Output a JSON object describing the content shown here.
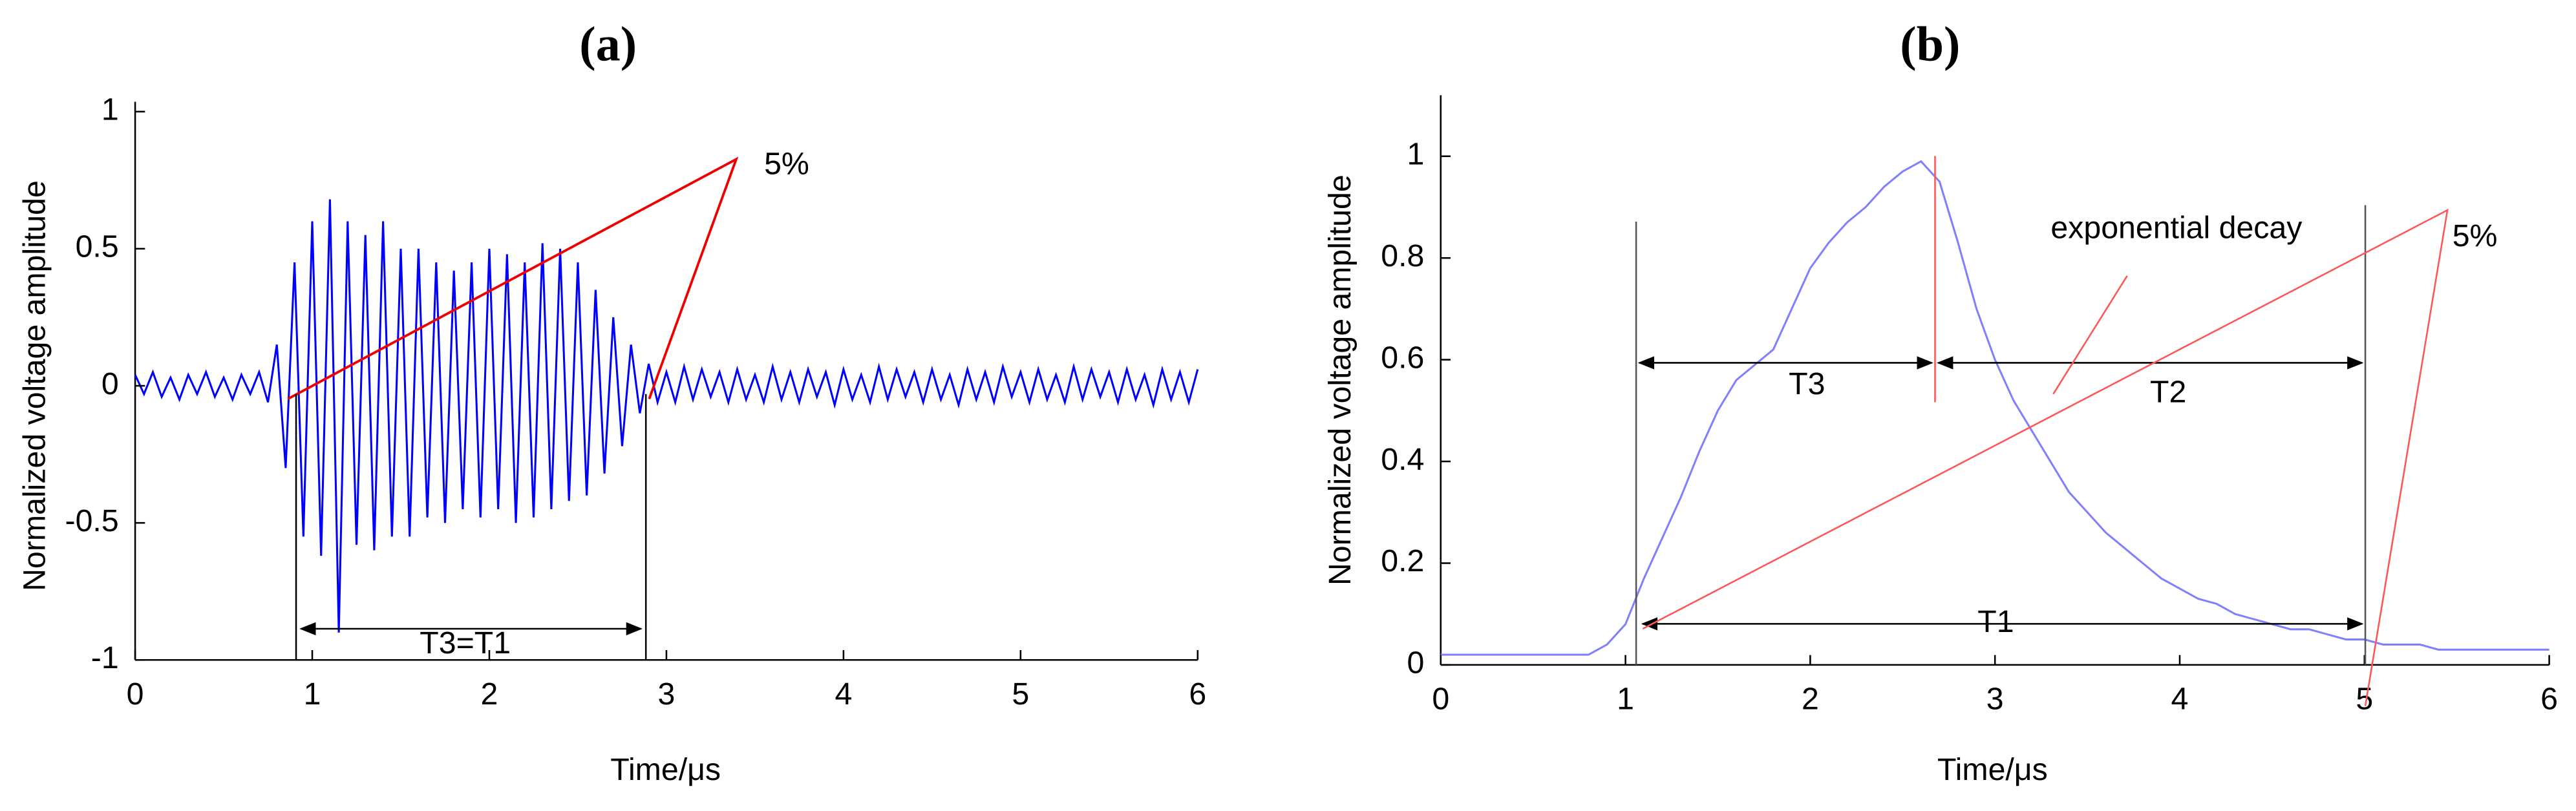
{
  "chart_data": [
    {
      "type": "line",
      "title": "(a)",
      "xlabel": "Time/μs",
      "ylabel": "Normalized voltage amplitude",
      "x": [
        0,
        0.05,
        0.1,
        0.15,
        0.2,
        0.25,
        0.3,
        0.35,
        0.4,
        0.45,
        0.5,
        0.55,
        0.6,
        0.65,
        0.7,
        0.75,
        0.8,
        0.85,
        0.9,
        0.95,
        1,
        1.05,
        1.1,
        1.15,
        1.2,
        1.25,
        1.3,
        1.35,
        1.4,
        1.45,
        1.5,
        1.55,
        1.6,
        1.65,
        1.7,
        1.75,
        1.8,
        1.85,
        1.9,
        1.95,
        2,
        2.05,
        2.1,
        2.15,
        2.2,
        2.25,
        2.3,
        2.35,
        2.4,
        2.45,
        2.5,
        2.55,
        2.6,
        2.65,
        2.7,
        2.75,
        2.8,
        2.85,
        2.9,
        2.95,
        3,
        3.05,
        3.1,
        3.15,
        3.2,
        3.25,
        3.3,
        3.35,
        3.4,
        3.45,
        3.5,
        3.55,
        3.6,
        3.65,
        3.7,
        3.75,
        3.8,
        3.85,
        3.9,
        3.95,
        4,
        4.05,
        4.1,
        4.15,
        4.2,
        4.25,
        4.3,
        4.35,
        4.4,
        4.45,
        4.5,
        4.55,
        4.6,
        4.65,
        4.7,
        4.75,
        4.8,
        4.85,
        4.9,
        4.95,
        5,
        5.05,
        5.1,
        5.15,
        5.2,
        5.25,
        5.3,
        5.35,
        5.4,
        5.45,
        5.5,
        5.55,
        5.6,
        5.65,
        5.7,
        5.75,
        5.8,
        5.85,
        5.9,
        5.95,
        6
      ],
      "values": [
        0.04,
        -0.03,
        0.05,
        -0.04,
        0.03,
        -0.05,
        0.04,
        -0.03,
        0.05,
        -0.04,
        0.03,
        -0.05,
        0.04,
        -0.03,
        0.05,
        -0.06,
        0.15,
        -0.3,
        0.45,
        -0.55,
        0.6,
        -0.62,
        0.68,
        -0.9,
        0.6,
        -0.58,
        0.55,
        -0.6,
        0.6,
        -0.55,
        0.5,
        -0.55,
        0.5,
        -0.48,
        0.45,
        -0.5,
        0.42,
        -0.45,
        0.45,
        -0.48,
        0.5,
        -0.45,
        0.48,
        -0.5,
        0.45,
        -0.48,
        0.52,
        -0.45,
        0.5,
        -0.42,
        0.45,
        -0.4,
        0.35,
        -0.32,
        0.25,
        -0.22,
        0.15,
        -0.1,
        0.08,
        -0.06,
        0.05,
        -0.06,
        0.07,
        -0.05,
        0.06,
        -0.04,
        0.05,
        -0.06,
        0.06,
        -0.05,
        0.04,
        -0.06,
        0.07,
        -0.05,
        0.05,
        -0.06,
        0.06,
        -0.04,
        0.05,
        -0.07,
        0.06,
        -0.05,
        0.04,
        -0.06,
        0.07,
        -0.05,
        0.06,
        -0.04,
        0.05,
        -0.06,
        0.06,
        -0.05,
        0.04,
        -0.07,
        0.06,
        -0.05,
        0.05,
        -0.06,
        0.07,
        -0.04,
        0.05,
        -0.06,
        0.06,
        -0.05,
        0.04,
        -0.06,
        0.07,
        -0.05,
        0.06,
        -0.04,
        0.05,
        -0.06,
        0.06,
        -0.05,
        0.04,
        -0.07,
        0.06,
        -0.05,
        0.05,
        -0.06,
        0.06
      ],
      "color": "#0000ff",
      "xlim": [
        0,
        6
      ],
      "ylim": [
        -1,
        1
      ],
      "xticks": [
        0,
        1,
        2,
        3,
        4,
        5,
        6
      ],
      "yticks": [
        -1,
        -0.5,
        0,
        0.5,
        1
      ],
      "annotations": [
        "5%",
        "T3=T1"
      ]
    },
    {
      "type": "line",
      "title": "(b)",
      "xlabel": "Time/μs",
      "ylabel": "Normalized voltage amplitude",
      "x": [
        0,
        0.1,
        0.2,
        0.3,
        0.4,
        0.5,
        0.6,
        0.7,
        0.8,
        0.9,
        1,
        1.1,
        1.2,
        1.3,
        1.4,
        1.5,
        1.6,
        1.7,
        1.8,
        1.9,
        2,
        2.1,
        2.2,
        2.3,
        2.4,
        2.5,
        2.6,
        2.7,
        2.8,
        2.9,
        3,
        3.1,
        3.2,
        3.3,
        3.4,
        3.5,
        3.6,
        3.7,
        3.8,
        3.9,
        4,
        4.1,
        4.2,
        4.3,
        4.4,
        4.5,
        4.6,
        4.7,
        4.8,
        4.9,
        5,
        5.1,
        5.2,
        5.3,
        5.4,
        5.5,
        5.6,
        5.7,
        5.8,
        5.9,
        6
      ],
      "values": [
        0.02,
        0.02,
        0.02,
        0.02,
        0.02,
        0.02,
        0.02,
        0.02,
        0.02,
        0.04,
        0.08,
        0.17,
        0.25,
        0.33,
        0.42,
        0.5,
        0.56,
        0.59,
        0.62,
        0.7,
        0.78,
        0.83,
        0.87,
        0.9,
        0.94,
        0.97,
        0.99,
        0.95,
        0.83,
        0.7,
        0.6,
        0.52,
        0.46,
        0.4,
        0.34,
        0.3,
        0.26,
        0.23,
        0.2,
        0.17,
        0.15,
        0.13,
        0.12,
        0.1,
        0.09,
        0.08,
        0.07,
        0.07,
        0.06,
        0.05,
        0.05,
        0.04,
        0.04,
        0.04,
        0.03,
        0.03,
        0.03,
        0.03,
        0.03,
        0.03,
        0.03
      ],
      "color": "#8080ff",
      "xlim": [
        0,
        6
      ],
      "ylim": [
        0,
        1.12
      ],
      "xticks": [
        0,
        1,
        2,
        3,
        4,
        5,
        6
      ],
      "yticks": [
        0,
        0.2,
        0.4,
        0.6,
        0.8,
        1
      ],
      "annotations": [
        "exponential decay",
        "5%",
        "T3",
        "T2",
        "T1"
      ]
    }
  ]
}
